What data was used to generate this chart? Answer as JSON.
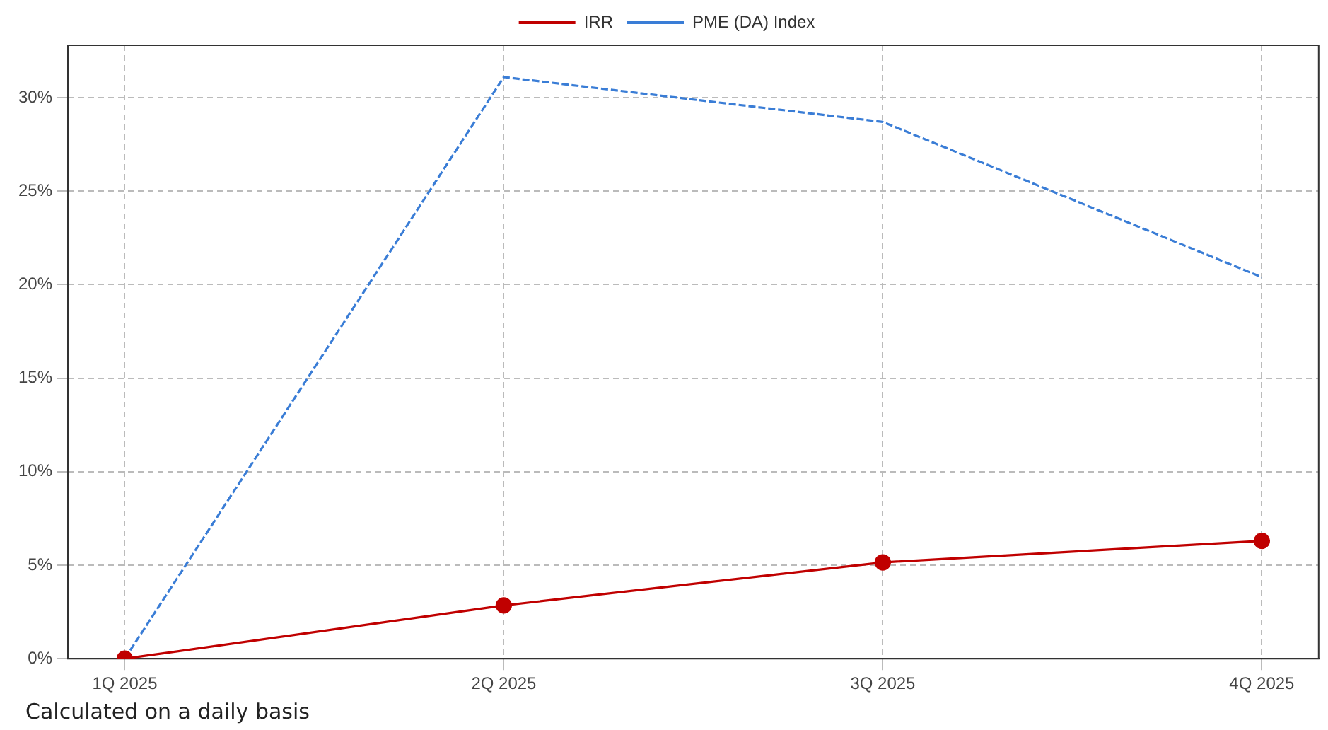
{
  "chart_data": {
    "type": "line",
    "categories": [
      "1Q 2025",
      "2Q 2025",
      "3Q 2025",
      "4Q 2025"
    ],
    "series": [
      {
        "name": "IRR",
        "color": "#c00000",
        "values": [
          0,
          2.85,
          5.15,
          6.3
        ],
        "marker": "circle",
        "line_style": "solid"
      },
      {
        "name": "PME (DA) Index",
        "color": "#3a7dd6",
        "values": [
          0,
          31.1,
          28.7,
          20.4
        ],
        "marker": "none",
        "line_style": "dashed"
      }
    ],
    "ylim": [
      0,
      32.8
    ],
    "yticks": [
      {
        "value": 0,
        "label": "0%"
      },
      {
        "value": 5,
        "label": "5%"
      },
      {
        "value": 10,
        "label": "10%"
      },
      {
        "value": 15,
        "label": "15%"
      },
      {
        "value": 20,
        "label": "20%"
      },
      {
        "value": 25,
        "label": "25%"
      },
      {
        "value": 30,
        "label": "30%"
      }
    ],
    "grid": true,
    "legend": "top",
    "annotations": [
      "Calculated on a daily basis"
    ]
  }
}
